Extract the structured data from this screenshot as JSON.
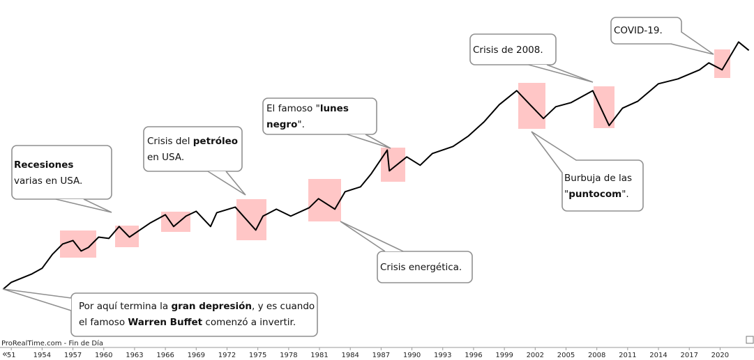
{
  "chart_data": {
    "type": "line",
    "source": "ProRealTime.com - Fin de Día",
    "navigation": "«",
    "log_scale": true,
    "xlim": [
      1949.9,
      2023.3
    ],
    "ylim": [
      5.2,
      12400
    ],
    "xticks": [
      {
        "value": 1951,
        "label": "51"
      },
      1954,
      1957,
      1960,
      1963,
      1966,
      1969,
      1972,
      1975,
      1978,
      1981,
      1984,
      1987,
      1990,
      1993,
      1996,
      1999,
      2002,
      2005,
      2008,
      2011,
      2014,
      2017,
      2020
    ],
    "x": [
      1950.2,
      1951,
      1953,
      1954,
      1955,
      1956,
      1957,
      1957.8,
      1958.5,
      1959.5,
      1960.5,
      1961.5,
      1962.5,
      1963.5,
      1964.5,
      1966,
      1966.8,
      1968,
      1969,
      1970.4,
      1971,
      1972.8,
      1974.8,
      1975.5,
      1976.8,
      1978.2,
      1980,
      1980.9,
      1982.5,
      1983.5,
      1985,
      1986,
      1987.6,
      1987.8,
      1989.5,
      1990.8,
      1992,
      1994,
      1995.5,
      1997,
      1998.5,
      2000.2,
      2001.5,
      2002.8,
      2004,
      2005.5,
      2007.6,
      2009.2,
      2010.5,
      2012,
      2014,
      2015.9,
      2018,
      2018.9,
      2020.2,
      2021.8,
      2022.8
    ],
    "series": [
      {
        "color": "#000000",
        "values": [
          17,
          19.9,
          24.1,
          27.4,
          37.6,
          47.7,
          51.6,
          40.6,
          44,
          55.8,
          54.1,
          71,
          55.8,
          65.5,
          76.7,
          92.9,
          71,
          89.9,
          100.5,
          71,
          97.4,
          110.6,
          65.5,
          89.9,
          105.4,
          89.9,
          108.9,
          133.9,
          105.4,
          157,
          175.4,
          233.5,
          406,
          252.5,
          347,
          287,
          375.5,
          440.6,
          558.5,
          767,
          1142,
          1570,
          1142,
          832,
          1089,
          1197,
          1570,
          709,
          1054,
          1236,
          1838,
          2054,
          2525,
          2957,
          2525,
          4762,
          3936
        ]
      }
    ],
    "annotations": [
      {
        "lines": [
          [
            {
              "text": "Recesiones",
              "bold": true
            }
          ],
          [
            {
              "text": "varias en USA."
            }
          ]
        ]
      },
      {
        "lines": [
          [
            {
              "text": "Por aquí termina la "
            },
            {
              "text": "gran depresión",
              "bold": true
            },
            {
              "text": ", y es cuando"
            }
          ],
          [
            {
              "text": "el famoso "
            },
            {
              "text": "Warren Buffet",
              "bold": true
            },
            {
              "text": " comenzó a invertir."
            }
          ]
        ]
      },
      {
        "lines": [
          [
            {
              "text": "Crisis del "
            },
            {
              "text": "petróleo",
              "bold": true
            }
          ],
          [
            {
              "text": "en USA."
            }
          ]
        ]
      },
      {
        "lines": [
          [
            {
              "text": "El famoso \""
            },
            {
              "text": "lunes",
              "bold": true
            }
          ],
          [
            {
              "text": "negro",
              "bold": true
            },
            {
              "text": "\"."
            }
          ]
        ]
      },
      {
        "lines": [
          [
            {
              "text": "Crisis energética."
            }
          ]
        ]
      },
      {
        "lines": [
          [
            {
              "text": "Crisis de 2008."
            }
          ]
        ]
      },
      {
        "lines": [
          [
            {
              "text": "Burbuja de las"
            }
          ],
          [
            {
              "text": "\""
            },
            {
              "text": "puntocom",
              "bold": true
            },
            {
              "text": "\"."
            }
          ]
        ]
      },
      {
        "lines": [
          [
            {
              "text": "COVID-19."
            }
          ]
        ]
      }
    ]
  }
}
